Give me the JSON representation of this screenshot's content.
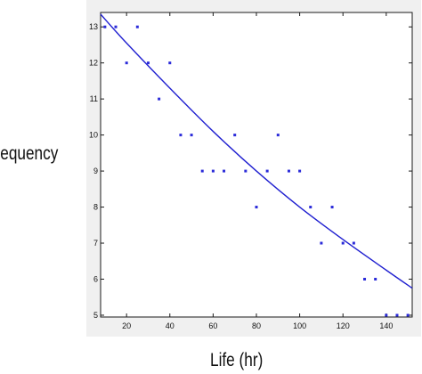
{
  "chart_data": {
    "type": "scatter",
    "title": "",
    "xlabel": "Life (hr)",
    "ylabel": "Frequency",
    "xlim": [
      8,
      152
    ],
    "ylim": [
      4.95,
      13.4
    ],
    "x_ticks": [
      20,
      40,
      60,
      80,
      100,
      120,
      140
    ],
    "y_ticks": [
      5,
      6,
      7,
      8,
      9,
      10,
      11,
      12,
      13
    ],
    "grid": false,
    "series": [
      {
        "type": "scatter",
        "marker": "point",
        "color": "#2b2bd9",
        "points": [
          [
            10,
            13
          ],
          [
            15,
            13
          ],
          [
            20,
            12
          ],
          [
            25,
            13
          ],
          [
            30,
            12
          ],
          [
            35,
            11
          ],
          [
            40,
            12
          ],
          [
            45,
            10
          ],
          [
            50,
            10
          ],
          [
            55,
            9
          ],
          [
            60,
            9
          ],
          [
            65,
            9
          ],
          [
            70,
            10
          ],
          [
            75,
            9
          ],
          [
            80,
            8
          ],
          [
            85,
            9
          ],
          [
            90,
            10
          ],
          [
            95,
            9
          ],
          [
            100,
            9
          ],
          [
            105,
            8
          ],
          [
            110,
            7
          ],
          [
            115,
            8
          ],
          [
            120,
            7
          ],
          [
            125,
            7
          ],
          [
            130,
            6
          ],
          [
            135,
            6
          ],
          [
            140,
            5
          ],
          [
            145,
            5
          ],
          [
            150,
            5
          ]
        ]
      },
      {
        "type": "line",
        "color": "#2020d0",
        "points": [
          [
            8,
            13.35
          ],
          [
            20,
            12.55
          ],
          [
            40,
            11.3
          ],
          [
            60,
            10.1
          ],
          [
            80,
            9.0
          ],
          [
            100,
            8.0
          ],
          [
            120,
            7.1
          ],
          [
            140,
            6.25
          ],
          [
            152,
            5.75
          ]
        ]
      }
    ]
  }
}
